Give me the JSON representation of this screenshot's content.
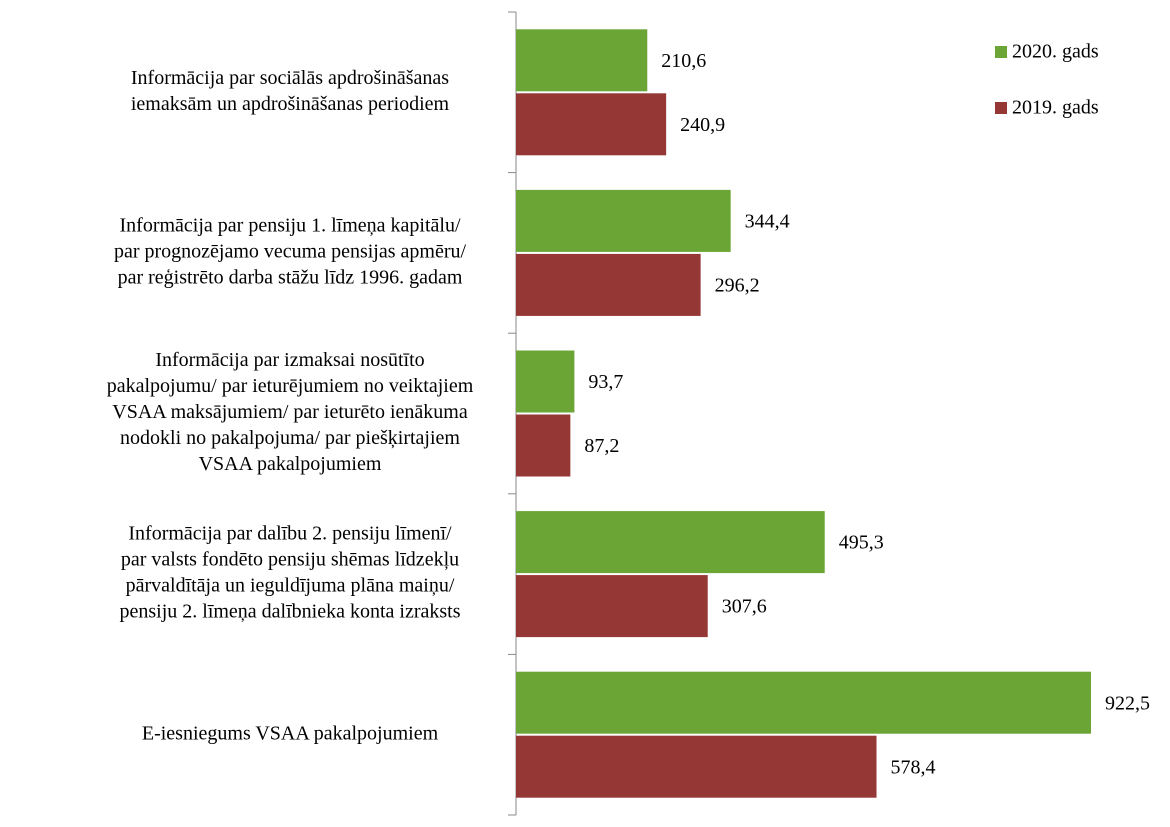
{
  "chart_data": {
    "type": "bar",
    "orientation": "horizontal",
    "categories": [
      [
        "Informācija par sociālās apdrošināšanas",
        "iemaksām un apdrošināšanas periodiem"
      ],
      [
        "Informācija par pensiju 1. līmeņa kapitālu/",
        "par prognozējamo vecuma pensijas apmēru/",
        "par reģistrēto darba stāžu līdz 1996. gadam"
      ],
      [
        "Informācija par izmaksai nosūtīto",
        "pakalpojumu/ par ieturējumiem no veiktajiem",
        "VSAA maksājumiem/ par ieturēto ienākuma",
        "nodokli no pakalpojuma/ par piešķirtajiem",
        "VSAA pakalpojumiem"
      ],
      [
        "Informācija par dalību 2. pensiju līmenī/",
        "par valsts fondēto pensiju shēmas līdzekļu",
        "pārvaldītāja un ieguldījuma plāna maiņu/",
        "pensiju 2. līmeņa dalībnieka konta izraksts"
      ],
      [
        "E-iesniegums VSAA pakalpojumiem"
      ]
    ],
    "series": [
      {
        "name": "2020. gads",
        "color": "#6aa535",
        "values": [
          210.6,
          344.4,
          93.7,
          495.3,
          922.5
        ],
        "value_labels": [
          "210,6",
          "344,4",
          "93,7",
          "495,3",
          "922,5"
        ]
      },
      {
        "name": "2019. gads",
        "color": "#953735",
        "values": [
          240.9,
          296.2,
          87.2,
          307.6,
          578.4
        ],
        "value_labels": [
          "240,9",
          "296,2",
          "87,2",
          "307,6",
          "578,4"
        ]
      }
    ],
    "xlim": [
      0,
      1000
    ],
    "legend": "top-right"
  }
}
